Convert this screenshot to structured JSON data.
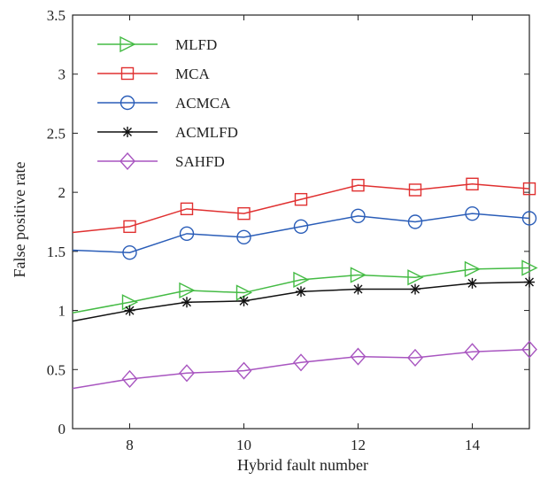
{
  "chart_data": {
    "type": "line",
    "title": "",
    "xlabel": "Hybrid fault number",
    "ylabel": "False positive rate",
    "xlim": [
      7,
      15
    ],
    "ylim": [
      0,
      3.5
    ],
    "x_ticks": [
      8,
      10,
      12,
      14
    ],
    "y_ticks": [
      0,
      0.5,
      1,
      1.5,
      2,
      2.5,
      3,
      3.5
    ],
    "x_tick_labels": [
      "8",
      "10",
      "12",
      "14"
    ],
    "y_tick_labels": [
      "0",
      "0.5",
      "1",
      "1.5",
      "2",
      "2.5",
      "3",
      "3.5"
    ],
    "grid": false,
    "legend_position": "top-left",
    "x": [
      7,
      8,
      9,
      10,
      11,
      12,
      13,
      14,
      15
    ],
    "series": [
      {
        "name": "MLFD",
        "color": "#44bb44",
        "marker": "triangle-right",
        "values": [
          0.98,
          1.07,
          1.17,
          1.15,
          1.26,
          1.3,
          1.28,
          1.35,
          1.36
        ]
      },
      {
        "name": "MCA",
        "color": "#e03030",
        "marker": "square",
        "values": [
          1.66,
          1.71,
          1.86,
          1.82,
          1.94,
          2.06,
          2.02,
          2.07,
          2.03
        ]
      },
      {
        "name": "ACMCA",
        "color": "#2a5db8",
        "marker": "circle",
        "values": [
          1.51,
          1.49,
          1.65,
          1.62,
          1.71,
          1.8,
          1.75,
          1.82,
          1.78
        ]
      },
      {
        "name": "ACMLFD",
        "color": "#111111",
        "marker": "asterisk",
        "values": [
          0.91,
          1.0,
          1.07,
          1.08,
          1.16,
          1.18,
          1.18,
          1.23,
          1.24
        ]
      },
      {
        "name": "SAHFD",
        "color": "#a855c0",
        "marker": "diamond",
        "values": [
          0.34,
          0.42,
          0.47,
          0.49,
          0.56,
          0.61,
          0.6,
          0.65,
          0.67
        ]
      }
    ]
  }
}
